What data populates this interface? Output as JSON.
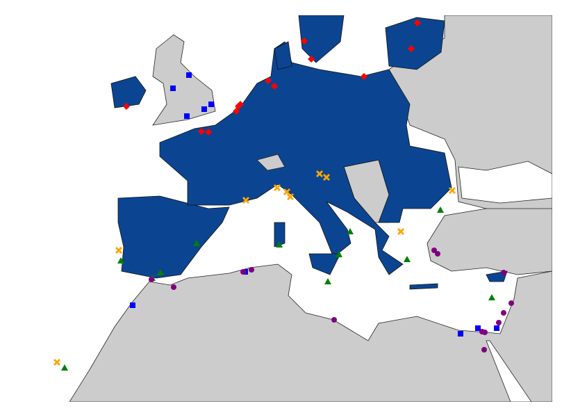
{
  "markers": [
    {
      "color": "#ff0000",
      "shape": "diamond"
    },
    {
      "color": "#0000ff",
      "shape": "square"
    },
    {
      "color": "#ffa500",
      "shape": "cross"
    },
    {
      "color": "#008000",
      "shape": "triangle"
    },
    {
      "color": "#800080",
      "shape": "circle"
    }
  ]
}
